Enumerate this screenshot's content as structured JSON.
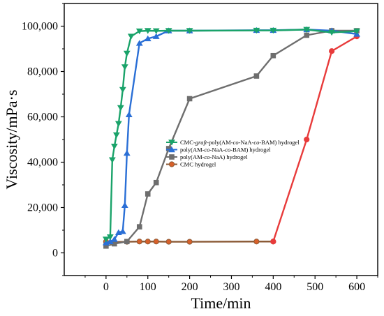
{
  "chart_data": {
    "type": "line",
    "xlabel": "Time/min",
    "ylabel": "Viscosity/mPa·s",
    "xlim": [
      -100,
      650
    ],
    "ylim": [
      -10000,
      110000
    ],
    "x_ticks": [
      0,
      100,
      200,
      300,
      400,
      500,
      600
    ],
    "y_ticks": [
      0,
      20000,
      40000,
      60000,
      80000,
      100000
    ],
    "x_tick_labels": [
      "0",
      "100",
      "200",
      "300",
      "400",
      "500",
      "600"
    ],
    "y_tick_labels": [
      "0",
      "20,000",
      "40,000",
      "60,000",
      "80,000",
      "100,000"
    ],
    "grid": false,
    "legend_position": "right-center",
    "series": [
      {
        "name": "CMC-graft-poly(AM-co-NaA-co-BAM) hydrogel",
        "name_parts": [
          "CMC-",
          "graft",
          "-poly(AM-",
          "co",
          "-NaA-",
          "co",
          "-BAM) hydrogel"
        ],
        "color": "#1aa36a",
        "marker": "triangle-down",
        "x": [
          0,
          10,
          15,
          20,
          25,
          30,
          35,
          40,
          45,
          50,
          60,
          80,
          100,
          120,
          150,
          200,
          360,
          400,
          480,
          540,
          600
        ],
        "y": [
          6000,
          7000,
          41000,
          47000,
          52000,
          57000,
          64000,
          72000,
          82000,
          88000,
          95500,
          97800,
          98000,
          97900,
          98000,
          98000,
          98100,
          98100,
          98500,
          97200,
          97800
        ]
      },
      {
        "name": "poly(AM-co-NaA-co-BAM) hydrogel",
        "name_parts": [
          "poly(AM-",
          "co",
          "-NaA-",
          "co",
          "-BAM) hydrogel"
        ],
        "color": "#2a6fd6",
        "marker": "triangle-up",
        "x": [
          0,
          10,
          20,
          30,
          40,
          45,
          50,
          55,
          80,
          100,
          120,
          150,
          200,
          360,
          400,
          480,
          540,
          600
        ],
        "y": [
          4500,
          5000,
          6000,
          9000,
          9500,
          21000,
          44000,
          61000,
          92500,
          94500,
          95500,
          98000,
          98000,
          98200,
          98200,
          98500,
          98000,
          96500
        ]
      },
      {
        "name": "poly(AM-co-NaA) hydrogel",
        "name_parts": [
          "poly(AM-",
          "co",
          "-NaA) hydrogel"
        ],
        "color": "#6e6e6e",
        "marker": "square",
        "x": [
          0,
          20,
          50,
          80,
          100,
          120,
          150,
          200,
          360,
          400,
          480,
          540,
          600
        ],
        "y": [
          3000,
          4000,
          5000,
          11500,
          26000,
          31000,
          46000,
          68000,
          78000,
          87000,
          96000,
          98000,
          98000
        ]
      },
      {
        "name": "CMC hydrogel",
        "name_parts": [
          "CMC hydrogel"
        ],
        "color": "#8b5a36",
        "marker": "circle",
        "marker_fill": "#d8602a",
        "x": [
          0,
          20,
          50,
          80,
          100,
          120,
          150,
          200,
          360,
          400
        ],
        "y": [
          5000,
          4800,
          4900,
          5000,
          5000,
          5000,
          4900,
          4900,
          5000,
          5000
        ]
      },
      {
        "name": "",
        "color": "#e83b3b",
        "marker": "circle",
        "x": [
          400,
          480,
          540,
          600
        ],
        "y": [
          5000,
          50000,
          89000,
          95500
        ]
      }
    ]
  }
}
